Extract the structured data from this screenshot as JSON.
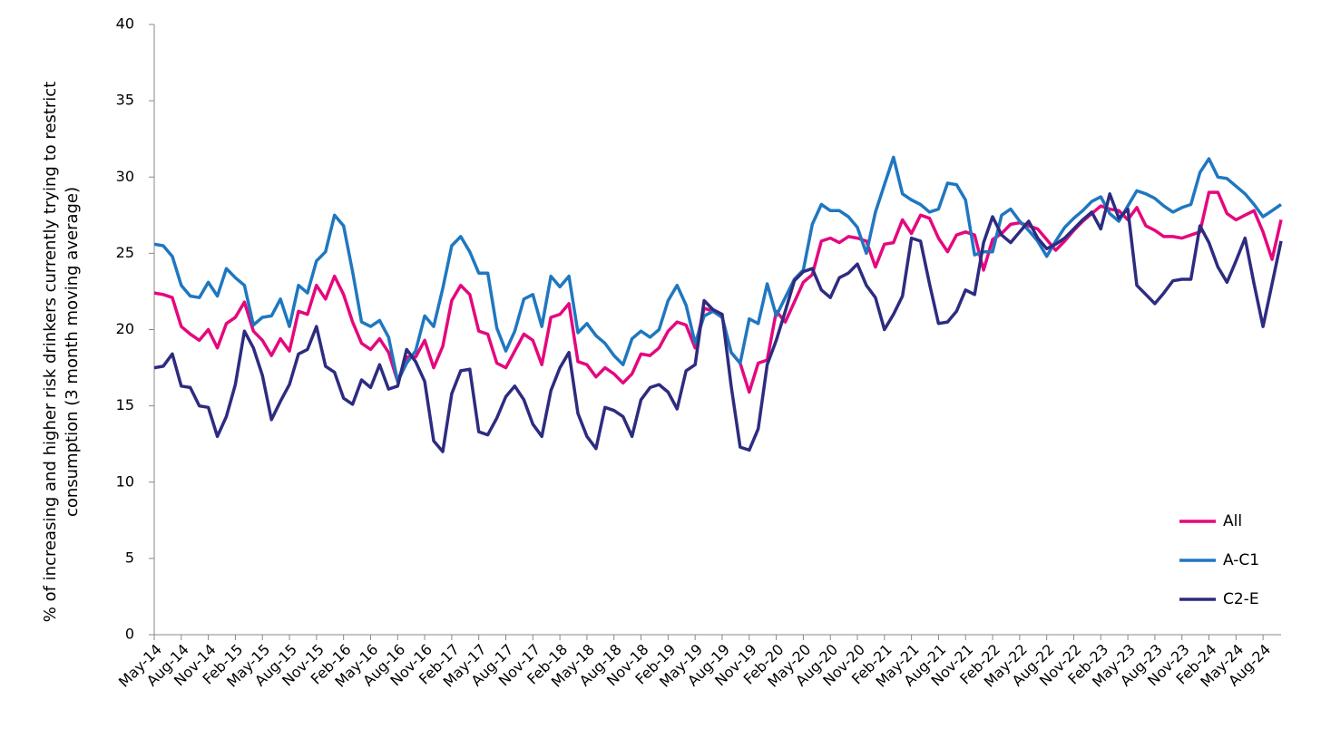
{
  "chart_data": {
    "type": "line",
    "y_label": "% of increasing and higher risk drinkers currently trying to restrict consumption (3 month moving average)",
    "categories": [
      "May-14",
      null,
      null,
      "Aug-14",
      null,
      null,
      "Nov-14",
      null,
      null,
      "Feb-15",
      null,
      null,
      "May-15",
      null,
      null,
      "Aug-15",
      null,
      null,
      "Nov-15",
      null,
      null,
      "Feb-16",
      null,
      null,
      "May-16",
      null,
      null,
      "Aug-16",
      null,
      null,
      "Nov-16",
      null,
      null,
      "Feb-17",
      null,
      null,
      "May-17",
      null,
      null,
      "Aug-17",
      null,
      null,
      "Nov-17",
      null,
      null,
      "Feb-18",
      null,
      null,
      "May-18",
      null,
      null,
      "Aug-18",
      null,
      null,
      "Nov-18",
      null,
      null,
      "Feb-19",
      null,
      null,
      "May-19",
      null,
      null,
      "Aug-19",
      null,
      null,
      "Nov-19",
      null,
      null,
      "Feb-20",
      null,
      null,
      "May-20",
      null,
      null,
      "Aug-20",
      null,
      null,
      "Nov-20",
      null,
      null,
      "Feb-21",
      null,
      null,
      "May-21",
      null,
      null,
      "Aug-21",
      null,
      null,
      "Nov-21",
      null,
      null,
      "Feb-22",
      null,
      null,
      "May-22",
      null,
      null,
      "Aug-22",
      null,
      null,
      "Nov-22",
      null,
      null,
      "Feb-23",
      null,
      null,
      "May-23",
      null,
      null,
      "Aug-23",
      null,
      null,
      "Nov-23",
      null,
      null,
      "Feb-24",
      null,
      null,
      "May-24",
      null,
      null,
      "Aug-24",
      null,
      null
    ],
    "series": [
      {
        "name": "All",
        "color": "#e5077e",
        "values": [
          22.4,
          22.3,
          22.1,
          20.2,
          19.7,
          19.3,
          20.0,
          18.8,
          20.4,
          20.8,
          21.8,
          19.9,
          19.3,
          18.3,
          19.4,
          18.6,
          21.2,
          21.0,
          22.9,
          22.0,
          23.5,
          22.3,
          20.5,
          19.1,
          18.7,
          19.4,
          18.5,
          16.6,
          18.2,
          18.2,
          19.3,
          17.5,
          18.9,
          21.9,
          22.9,
          22.3,
          19.9,
          19.7,
          17.8,
          17.5,
          18.6,
          19.7,
          19.3,
          17.7,
          20.8,
          21.0,
          21.7,
          17.9,
          17.7,
          16.9,
          17.5,
          17.1,
          16.5,
          17.1,
          18.4,
          18.3,
          18.8,
          19.9,
          20.5,
          20.3,
          18.8,
          21.4,
          21.2,
          20.8,
          18.5,
          17.8,
          15.9,
          17.8,
          18.0,
          21.2,
          20.5,
          21.8,
          23.1,
          23.6,
          25.8,
          26.0,
          25.7,
          26.1,
          26.0,
          25.8,
          24.1,
          25.6,
          25.7,
          27.2,
          26.3,
          27.5,
          27.3,
          26.0,
          25.1,
          26.2,
          26.4,
          26.2,
          23.9,
          25.9,
          26.3,
          26.9,
          27.0,
          26.8,
          26.6,
          25.9,
          25.2,
          25.8,
          26.5,
          27.1,
          27.6,
          28.1,
          27.9,
          27.8,
          27.2,
          28.0,
          26.8,
          26.5,
          26.1,
          26.1,
          26.0,
          26.2,
          26.4,
          29.0,
          29.0,
          27.6,
          27.2,
          27.5,
          27.8,
          26.4,
          24.6,
          27.2
        ]
      },
      {
        "name": "A-C1",
        "color": "#1f77c0",
        "values": [
          25.6,
          25.5,
          24.8,
          22.9,
          22.2,
          22.1,
          23.1,
          22.2,
          24.0,
          23.4,
          22.9,
          20.3,
          20.8,
          20.9,
          22.0,
          20.2,
          22.9,
          22.4,
          24.5,
          25.1,
          27.5,
          26.8,
          23.8,
          20.5,
          20.2,
          20.6,
          19.5,
          16.6,
          17.8,
          18.6,
          20.9,
          20.2,
          22.7,
          25.5,
          26.1,
          25.1,
          23.7,
          23.7,
          20.1,
          18.6,
          19.9,
          22.0,
          22.3,
          20.2,
          23.5,
          22.8,
          23.5,
          19.8,
          20.4,
          19.6,
          19.1,
          18.3,
          17.7,
          19.4,
          19.9,
          19.5,
          20.0,
          21.9,
          22.9,
          21.6,
          19.1,
          20.9,
          21.2,
          20.8,
          18.5,
          17.8,
          20.7,
          20.4,
          23.0,
          20.9,
          22.1,
          23.3,
          23.9,
          26.9,
          28.2,
          27.8,
          27.8,
          27.4,
          26.7,
          25.0,
          27.7,
          29.5,
          31.3,
          28.9,
          28.5,
          28.2,
          27.7,
          27.9,
          29.6,
          29.5,
          28.5,
          24.9,
          25.1,
          25.1,
          27.5,
          27.9,
          27.1,
          26.5,
          25.8,
          24.8,
          25.8,
          26.7,
          27.3,
          27.8,
          28.4,
          28.7,
          27.6,
          27.1,
          28.1,
          29.1,
          28.9,
          28.6,
          28.1,
          27.7,
          28.0,
          28.2,
          30.3,
          31.2,
          30.0,
          29.9,
          29.4,
          28.9,
          28.2,
          27.4,
          27.8,
          28.2
        ]
      },
      {
        "name": "C2-E",
        "color": "#2d2c80",
        "values": [
          17.5,
          17.6,
          18.4,
          16.3,
          16.2,
          15.0,
          14.9,
          13.0,
          14.3,
          16.4,
          19.9,
          18.8,
          17.0,
          14.1,
          15.3,
          16.4,
          18.4,
          18.7,
          20.2,
          17.6,
          17.2,
          15.5,
          15.1,
          16.7,
          16.2,
          17.7,
          16.1,
          16.3,
          18.7,
          17.9,
          16.6,
          12.7,
          12.0,
          15.8,
          17.3,
          17.4,
          13.3,
          13.1,
          14.2,
          15.6,
          16.3,
          15.4,
          13.8,
          13.0,
          16.0,
          17.5,
          18.5,
          14.5,
          13.0,
          12.2,
          14.9,
          14.7,
          14.3,
          13.0,
          15.4,
          16.2,
          16.4,
          15.9,
          14.8,
          17.3,
          17.7,
          21.9,
          21.3,
          21.0,
          16.3,
          12.3,
          12.1,
          13.5,
          17.7,
          19.3,
          21.2,
          23.2,
          23.8,
          24.0,
          22.6,
          22.1,
          23.4,
          23.7,
          24.3,
          22.9,
          22.1,
          20.0,
          21.0,
          22.2,
          26.0,
          25.8,
          23.0,
          20.4,
          20.5,
          21.2,
          22.6,
          22.3,
          25.7,
          27.4,
          26.2,
          25.7,
          26.4,
          27.1,
          26.0,
          25.3,
          25.6,
          26.0,
          26.6,
          27.2,
          27.7,
          26.6,
          28.9,
          27.3,
          27.9,
          22.9,
          22.3,
          21.7,
          22.4,
          23.2,
          23.3,
          23.3,
          26.8,
          25.7,
          24.1,
          23.1,
          24.5,
          26.0,
          23.0,
          20.2,
          23.0,
          25.8
        ]
      }
    ],
    "ylim": [
      0,
      40
    ],
    "yticks": [
      0,
      5,
      10,
      15,
      20,
      25,
      30,
      35,
      40
    ],
    "grid": false,
    "legend": "lower right"
  }
}
